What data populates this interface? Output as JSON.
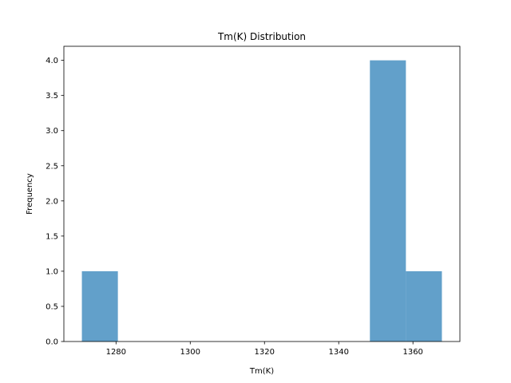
{
  "chart_data": {
    "type": "bar",
    "title": "Tm(K) Distribution",
    "xlabel": "Tm(K)",
    "ylabel": "Frequency",
    "bins": [
      {
        "x0": 1270.8,
        "x1": 1280.5,
        "count": 1
      },
      {
        "x0": 1280.5,
        "x1": 1290.2,
        "count": 0
      },
      {
        "x0": 1290.2,
        "x1": 1299.9,
        "count": 0
      },
      {
        "x0": 1299.9,
        "x1": 1309.6,
        "count": 0
      },
      {
        "x0": 1309.6,
        "x1": 1319.3,
        "count": 0
      },
      {
        "x0": 1319.3,
        "x1": 1329.0,
        "count": 0
      },
      {
        "x0": 1329.0,
        "x1": 1338.7,
        "count": 0
      },
      {
        "x0": 1338.7,
        "x1": 1348.4,
        "count": 0
      },
      {
        "x0": 1348.4,
        "x1": 1358.1,
        "count": 4
      },
      {
        "x0": 1358.1,
        "x1": 1367.8,
        "count": 1
      }
    ],
    "xlim": [
      1265.95,
      1372.65
    ],
    "ylim": [
      0,
      4.2
    ],
    "xticks": [
      1280,
      1300,
      1320,
      1340,
      1360
    ],
    "xtick_labels": [
      "1280",
      "1300",
      "1320",
      "1340",
      "1360"
    ],
    "yticks": [
      0,
      0.5,
      1,
      1.5,
      2,
      2.5,
      3,
      3.5,
      4
    ],
    "ytick_labels": [
      "0.0",
      "0.5",
      "1.0",
      "1.5",
      "2.0",
      "2.5",
      "3.0",
      "3.5",
      "4.0"
    ],
    "bar_color": "#1f77b4",
    "bar_opacity": 0.7,
    "grid": false
  }
}
